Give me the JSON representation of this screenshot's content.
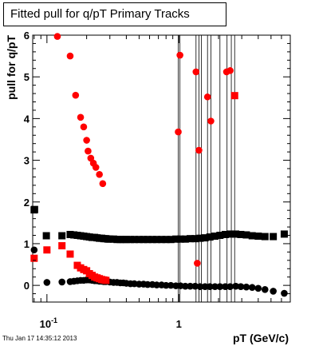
{
  "title": "Fitted pull for q/pT  Primary Tracks",
  "timestamp": "Thu Jan 17 14:35:12 2013",
  "colors": {
    "red": "#ff0000",
    "black": "#000000"
  },
  "chart_data": {
    "type": "scatter",
    "xlabel": "pT (GeV/c)",
    "ylabel": "pull for q/pT",
    "x_scale": "log",
    "xlim": [
      0.078,
      7.0
    ],
    "ylim": [
      -0.4,
      6.0
    ],
    "x_tick_labels": [
      {
        "value": 0.1,
        "base": "10",
        "exp": "-1"
      },
      {
        "value": 1,
        "base": "1",
        "exp": ""
      }
    ],
    "y_tick_labels": [
      "0",
      "1",
      "2",
      "3",
      "4",
      "5",
      "6"
    ],
    "vertical_lines_x": [
      0.99,
      1.02,
      1.35,
      1.42,
      1.48,
      1.65,
      1.75,
      2.05,
      2.32,
      2.5,
      2.65
    ],
    "series": [
      {
        "marker": "square",
        "color": "#000000",
        "points": [
          [
            0.08,
            1.81
          ],
          [
            0.0806,
            1.82
          ],
          [
            0.099,
            1.19
          ],
          [
            0.13,
            1.19
          ],
          [
            0.15,
            1.22
          ],
          [
            0.16,
            1.21
          ],
          [
            0.17,
            1.2
          ],
          [
            0.18,
            1.19
          ],
          [
            0.19,
            1.18
          ],
          [
            0.2,
            1.17
          ],
          [
            0.21,
            1.16
          ],
          [
            0.22,
            1.15
          ],
          [
            0.23,
            1.15
          ],
          [
            0.24,
            1.14
          ],
          [
            0.25,
            1.13
          ],
          [
            0.26,
            1.13
          ],
          [
            0.27,
            1.12
          ],
          [
            0.28,
            1.12
          ],
          [
            0.29,
            1.11
          ],
          [
            0.3,
            1.11
          ],
          [
            0.32,
            1.11
          ],
          [
            0.34,
            1.1
          ],
          [
            0.36,
            1.1
          ],
          [
            0.38,
            1.1
          ],
          [
            0.4,
            1.1
          ],
          [
            0.43,
            1.1
          ],
          [
            0.46,
            1.1
          ],
          [
            0.5,
            1.1
          ],
          [
            0.54,
            1.1
          ],
          [
            0.58,
            1.1
          ],
          [
            0.63,
            1.1
          ],
          [
            0.68,
            1.1
          ],
          [
            0.74,
            1.1
          ],
          [
            0.8,
            1.1
          ],
          [
            0.87,
            1.1
          ],
          [
            0.95,
            1.11
          ],
          [
            1.03,
            1.11
          ],
          [
            1.12,
            1.11
          ],
          [
            1.22,
            1.12
          ],
          [
            1.33,
            1.12
          ],
          [
            1.45,
            1.13
          ],
          [
            1.58,
            1.14
          ],
          [
            1.72,
            1.16
          ],
          [
            1.88,
            1.18
          ],
          [
            2.05,
            1.2
          ],
          [
            2.25,
            1.22
          ],
          [
            2.45,
            1.23
          ],
          [
            2.7,
            1.23
          ],
          [
            2.95,
            1.22
          ],
          [
            3.25,
            1.21
          ],
          [
            3.6,
            1.19
          ],
          [
            4.0,
            1.18
          ],
          [
            4.5,
            1.17
          ],
          [
            5.2,
            1.17
          ],
          [
            6.3,
            1.23
          ]
        ]
      },
      {
        "marker": "circle",
        "color": "#000000",
        "points": [
          [
            0.08,
            0.85
          ],
          [
            0.1,
            0.07
          ],
          [
            0.13,
            0.08
          ],
          [
            0.15,
            0.09
          ],
          [
            0.16,
            0.1
          ],
          [
            0.17,
            0.11
          ],
          [
            0.18,
            0.12
          ],
          [
            0.19,
            0.12
          ],
          [
            0.2,
            0.13
          ],
          [
            0.21,
            0.13
          ],
          [
            0.22,
            0.12
          ],
          [
            0.23,
            0.11
          ],
          [
            0.24,
            0.11
          ],
          [
            0.25,
            0.1
          ],
          [
            0.26,
            0.1
          ],
          [
            0.27,
            0.09
          ],
          [
            0.28,
            0.09
          ],
          [
            0.3,
            0.08
          ],
          [
            0.32,
            0.07
          ],
          [
            0.34,
            0.07
          ],
          [
            0.36,
            0.06
          ],
          [
            0.38,
            0.06
          ],
          [
            0.4,
            0.05
          ],
          [
            0.43,
            0.04
          ],
          [
            0.46,
            0.04
          ],
          [
            0.5,
            0.03
          ],
          [
            0.54,
            0.03
          ],
          [
            0.58,
            0.02
          ],
          [
            0.63,
            0.02
          ],
          [
            0.68,
            0.01
          ],
          [
            0.74,
            0.01
          ],
          [
            0.8,
            0.0
          ],
          [
            0.87,
            0.0
          ],
          [
            0.95,
            -0.01
          ],
          [
            1.03,
            -0.01
          ],
          [
            1.12,
            -0.02
          ],
          [
            1.22,
            -0.02
          ],
          [
            1.33,
            -0.02
          ],
          [
            1.45,
            -0.03
          ],
          [
            1.58,
            -0.03
          ],
          [
            1.72,
            -0.03
          ],
          [
            1.88,
            -0.03
          ],
          [
            2.05,
            -0.03
          ],
          [
            2.25,
            -0.03
          ],
          [
            2.45,
            -0.03
          ],
          [
            2.7,
            -0.02
          ],
          [
            2.95,
            -0.03
          ],
          [
            3.25,
            -0.04
          ],
          [
            3.6,
            -0.05
          ],
          [
            4.0,
            -0.07
          ],
          [
            4.5,
            -0.1
          ],
          [
            5.2,
            -0.14
          ],
          [
            6.3,
            -0.19
          ]
        ]
      },
      {
        "marker": "square",
        "color": "#ff0000",
        "points": [
          [
            0.08,
            0.65
          ],
          [
            0.1,
            0.85
          ],
          [
            0.13,
            0.95
          ],
          [
            0.15,
            0.75
          ],
          [
            0.17,
            0.48
          ],
          [
            0.18,
            0.42
          ],
          [
            0.19,
            0.38
          ],
          [
            0.2,
            0.35
          ],
          [
            0.21,
            0.28
          ],
          [
            0.22,
            0.24
          ],
          [
            0.23,
            0.2
          ],
          [
            0.24,
            0.18
          ],
          [
            0.25,
            0.16
          ],
          [
            0.26,
            0.14
          ],
          [
            0.27,
            0.13
          ],
          [
            0.28,
            0.12
          ],
          [
            2.65,
            4.55
          ]
        ]
      },
      {
        "marker": "circle",
        "color": "#ff0000",
        "points": [
          [
            0.12,
            5.97
          ],
          [
            0.15,
            5.5
          ],
          [
            0.165,
            4.56
          ],
          [
            0.18,
            4.03
          ],
          [
            0.19,
            3.8
          ],
          [
            0.2,
            3.48
          ],
          [
            0.205,
            3.22
          ],
          [
            0.215,
            3.05
          ],
          [
            0.225,
            2.93
          ],
          [
            0.235,
            2.83
          ],
          [
            0.25,
            2.66
          ],
          [
            0.265,
            2.44
          ],
          [
            0.99,
            3.68
          ],
          [
            1.02,
            5.52
          ],
          [
            1.35,
            5.12
          ],
          [
            1.38,
            0.53
          ],
          [
            1.42,
            3.24
          ],
          [
            1.65,
            4.52
          ],
          [
            1.75,
            3.94
          ],
          [
            2.3,
            5.12
          ],
          [
            2.45,
            5.15
          ]
        ]
      }
    ]
  }
}
